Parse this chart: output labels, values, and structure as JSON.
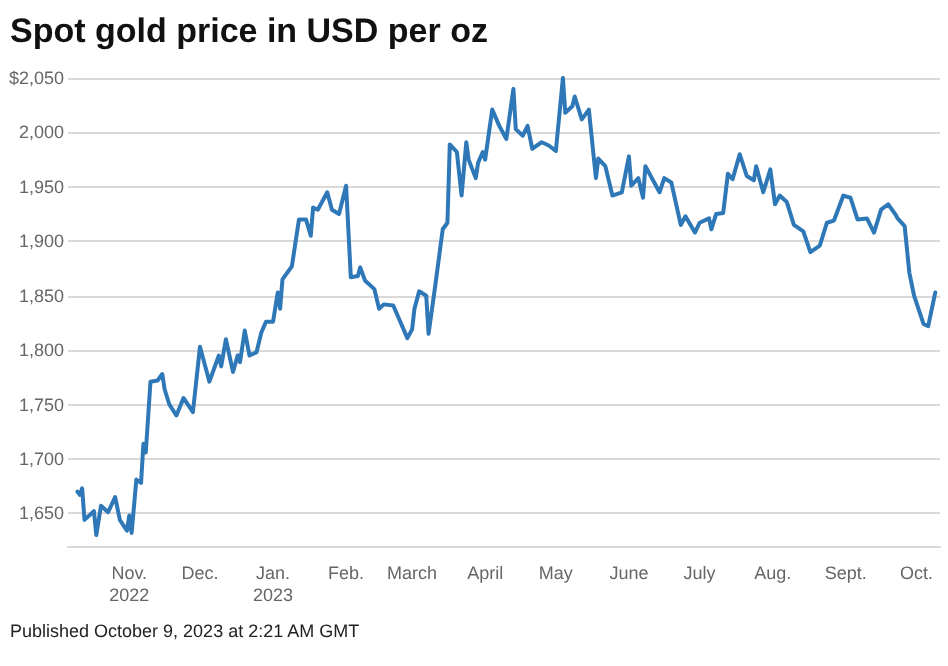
{
  "chart_data": {
    "type": "line",
    "title": "Spot gold price in USD per oz",
    "annotations": [
      "Published October 9, 2023 at 2:21 AM GMT"
    ],
    "x": [
      "2022-10-10",
      "2022-10-11",
      "2022-10-12",
      "2022-10-13",
      "2022-10-17",
      "2022-10-18",
      "2022-10-20",
      "2022-10-23",
      "2022-10-26",
      "2022-10-28",
      "2022-10-31",
      "2022-11-01",
      "2022-11-02",
      "2022-11-04",
      "2022-11-06",
      "2022-11-07",
      "2022-11-08",
      "2022-11-10",
      "2022-11-13",
      "2022-11-15",
      "2022-11-16",
      "2022-11-18",
      "2022-11-21",
      "2022-11-24",
      "2022-11-28",
      "2022-12-01",
      "2022-12-05",
      "2022-12-09",
      "2022-12-10",
      "2022-12-12",
      "2022-12-15",
      "2022-12-17",
      "2022-12-18",
      "2022-12-20",
      "2022-12-22",
      "2022-12-25",
      "2022-12-27",
      "2022-12-29",
      "2023-01-01",
      "2023-01-03",
      "2023-01-04",
      "2023-01-05",
      "2023-01-09",
      "2023-01-12",
      "2023-01-15",
      "2023-01-17",
      "2023-01-18",
      "2023-01-20",
      "2023-01-24",
      "2023-01-26",
      "2023-01-29",
      "2023-02-01",
      "2023-02-03",
      "2023-02-06",
      "2023-02-07",
      "2023-02-09",
      "2023-02-13",
      "2023-02-15",
      "2023-02-17",
      "2023-02-21",
      "2023-02-24",
      "2023-02-27",
      "2023-03-01",
      "2023-03-02",
      "2023-03-04",
      "2023-03-07",
      "2023-03-08",
      "2023-03-11",
      "2023-03-14",
      "2023-03-16",
      "2023-03-17",
      "2023-03-20",
      "2023-03-22",
      "2023-03-24",
      "2023-03-25",
      "2023-03-28",
      "2023-03-29",
      "2023-03-31",
      "2023-04-01",
      "2023-04-04",
      "2023-04-07",
      "2023-04-10",
      "2023-04-13",
      "2023-04-14",
      "2023-04-17",
      "2023-04-19",
      "2023-04-21",
      "2023-04-25",
      "2023-04-28",
      "2023-05-01",
      "2023-05-04",
      "2023-05-05",
      "2023-05-08",
      "2023-05-09",
      "2023-05-12",
      "2023-05-15",
      "2023-05-18",
      "2023-05-19",
      "2023-05-22",
      "2023-05-25",
      "2023-05-29",
      "2023-06-01",
      "2023-06-02",
      "2023-06-05",
      "2023-06-07",
      "2023-06-08",
      "2023-06-11",
      "2023-06-14",
      "2023-06-16",
      "2023-06-19",
      "2023-06-23",
      "2023-06-25",
      "2023-06-29",
      "2023-07-01",
      "2023-07-05",
      "2023-07-06",
      "2023-07-08",
      "2023-07-11",
      "2023-07-13",
      "2023-07-15",
      "2023-07-18",
      "2023-07-21",
      "2023-07-24",
      "2023-07-25",
      "2023-07-28",
      "2023-07-31",
      "2023-08-02",
      "2023-08-04",
      "2023-08-07",
      "2023-08-10",
      "2023-08-14",
      "2023-08-17",
      "2023-08-21",
      "2023-08-24",
      "2023-08-27",
      "2023-08-31",
      "2023-09-03",
      "2023-09-06",
      "2023-09-10",
      "2023-09-13",
      "2023-09-16",
      "2023-09-19",
      "2023-09-22",
      "2023-09-23",
      "2023-09-26",
      "2023-09-28",
      "2023-09-30",
      "2023-10-04",
      "2023-10-06",
      "2023-10-09"
    ],
    "series": [
      {
        "color": "#2f78b7",
        "values": [
          1670,
          1667,
          1673,
          1644,
          1652,
          1630,
          1657,
          1651,
          1665,
          1644,
          1634,
          1648,
          1632,
          1681,
          1678,
          1714,
          1706,
          1771,
          1772,
          1778,
          1764,
          1750,
          1740,
          1756,
          1743,
          1803,
          1771,
          1795,
          1785,
          1810,
          1780,
          1795,
          1789,
          1818,
          1795,
          1798,
          1816,
          1826,
          1826,
          1853,
          1838,
          1865,
          1877,
          1920,
          1920,
          1905,
          1931,
          1929,
          1945,
          1929,
          1925,
          1951,
          1867,
          1868,
          1876,
          1864,
          1856,
          1838,
          1842,
          1841,
          1826,
          1811,
          1819,
          1838,
          1854,
          1850,
          1815,
          1862,
          1911,
          1917,
          1989,
          1982,
          1942,
          1991,
          1975,
          1958,
          1972,
          1982,
          1975,
          2021,
          2006,
          1994,
          2040,
          2003,
          1997,
          2006,
          1985,
          1991,
          1988,
          1983,
          2050,
          2018,
          2024,
          2033,
          2012,
          2021,
          1958,
          1976,
          1969,
          1942,
          1945,
          1978,
          1951,
          1958,
          1940,
          1969,
          1957,
          1945,
          1958,
          1954,
          1915,
          1923,
          1908,
          1917,
          1921,
          1911,
          1925,
          1926,
          1962,
          1957,
          1980,
          1960,
          1956,
          1969,
          1945,
          1966,
          1934,
          1942,
          1936,
          1915,
          1909,
          1890,
          1896,
          1917,
          1919,
          1942,
          1940,
          1920,
          1921,
          1908,
          1929,
          1934,
          1925,
          1921,
          1914,
          1871,
          1850,
          1824,
          1822,
          1853
        ]
      }
    ],
    "xlim": [
      "2022-10-06",
      "2023-10-11"
    ],
    "xticks": [
      {
        "value": "2022-11-01",
        "label": "Nov.\n2022"
      },
      {
        "value": "2022-12-01",
        "label": "Dec."
      },
      {
        "value": "2023-01-01",
        "label": "Jan.\n2023"
      },
      {
        "value": "2023-02-01",
        "label": "Feb."
      },
      {
        "value": "2023-03-01",
        "label": "March"
      },
      {
        "value": "2023-04-01",
        "label": "April"
      },
      {
        "value": "2023-05-01",
        "label": "May"
      },
      {
        "value": "2023-06-01",
        "label": "June"
      },
      {
        "value": "2023-07-01",
        "label": "July"
      },
      {
        "value": "2023-08-01",
        "label": "Aug."
      },
      {
        "value": "2023-09-01",
        "label": "Sept."
      },
      {
        "value": "2023-10-01",
        "label": "Oct."
      }
    ],
    "ylim": [
      1620,
      2050
    ],
    "yticks": [
      {
        "value": 1650,
        "label": "1,650"
      },
      {
        "value": 1700,
        "label": "1,700"
      },
      {
        "value": 1750,
        "label": "1,750"
      },
      {
        "value": 1800,
        "label": "1,800"
      },
      {
        "value": 1850,
        "label": "1,850"
      },
      {
        "value": 1900,
        "label": "1,900"
      },
      {
        "value": 1950,
        "label": "1,950"
      },
      {
        "value": 2000,
        "label": "2,000"
      },
      {
        "value": 2050,
        "label": "$2,050"
      }
    ],
    "grid": "y",
    "marker": "none",
    "line_style": "solid"
  }
}
